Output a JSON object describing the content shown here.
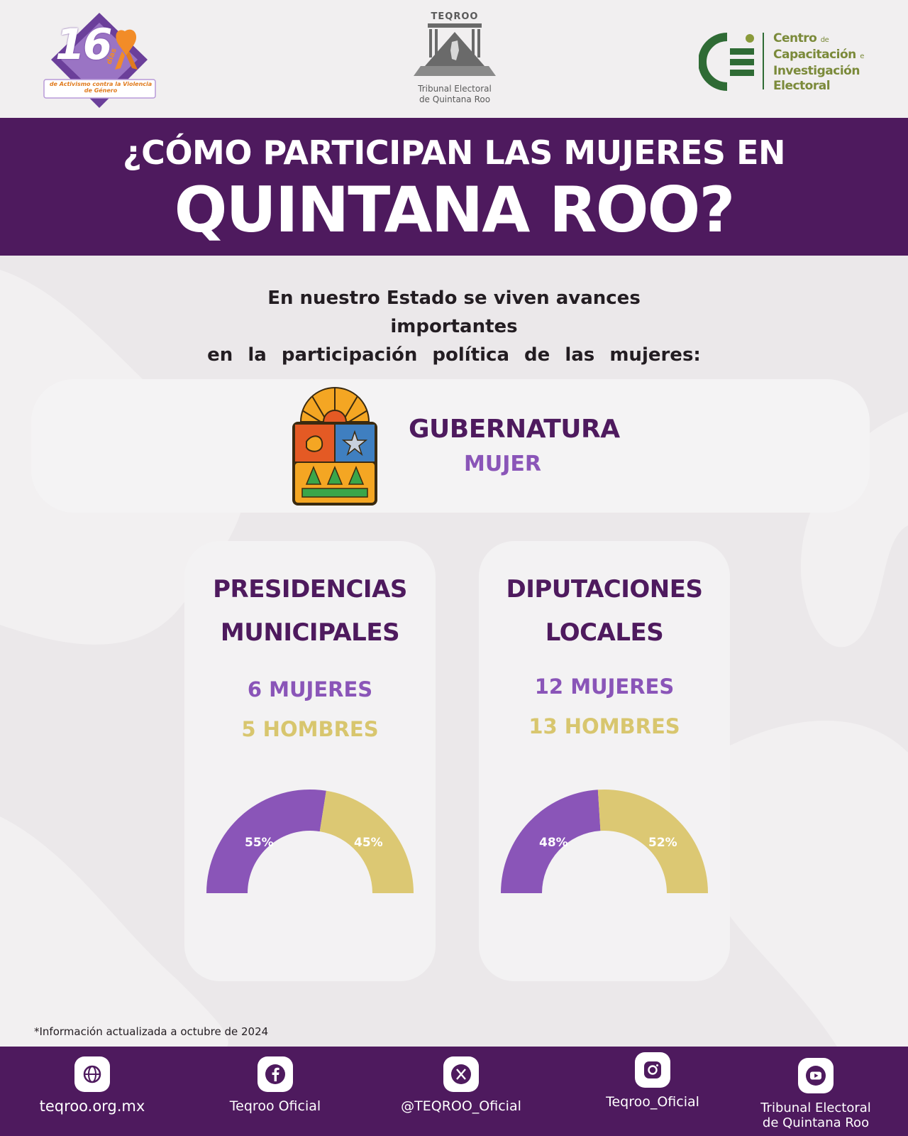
{
  "header": {
    "logo_16": {
      "number": "16",
      "dias": "días",
      "tagline": "de Activismo contra la Violencia de Género"
    },
    "logo_teqroo": {
      "acronym": "TEQROO",
      "name_line1": "Tribunal Electoral",
      "name_line2": "de Quintana Roo"
    },
    "logo_ccie": {
      "line1": "Centro",
      "line1_small": "de",
      "line2": "Capacitación",
      "line2_small": "e",
      "line3": "Investigación",
      "line4": "Electoral"
    }
  },
  "banner": {
    "line1": "¿CÓMO PARTICIPAN LAS MUJERES EN",
    "line2": "QUINTANA ROO?"
  },
  "intro": {
    "line1": "En nuestro Estado se viven avances importantes",
    "line2": "en la participación política de las mujeres:"
  },
  "gubernatura": {
    "title": "GUBERNATURA",
    "value": "MUJER"
  },
  "cards": [
    {
      "title_line1": "PRESIDENCIAS",
      "title_line2": "MUNICIPALES",
      "women": "6 MUJERES",
      "men": "5 HOMBRES",
      "women_pct_label": "55%",
      "men_pct_label": "45%"
    },
    {
      "title_line1": "DIPUTACIONES",
      "title_line2": "LOCALES",
      "women": "12 MUJERES",
      "men": "13 HOMBRES",
      "women_pct_label": "48%",
      "men_pct_label": "52%"
    }
  ],
  "chart_data": [
    {
      "type": "pie",
      "categories": [
        "MUJERES",
        "HOMBRES"
      ],
      "values": [
        55,
        45
      ],
      "colors": [
        "#8a55b8",
        "#dcc873"
      ]
    },
    {
      "type": "pie",
      "categories": [
        "MUJERES",
        "HOMBRES"
      ],
      "values": [
        48,
        52
      ],
      "colors": [
        "#8a55b8",
        "#dcc873"
      ]
    }
  ],
  "note": "*Información actualizada a octubre de 2024",
  "footer": {
    "items": [
      {
        "icon": "globe-icon",
        "label": "teqroo.org.mx"
      },
      {
        "icon": "facebook-icon",
        "label": "Teqroo Oficial"
      },
      {
        "icon": "x-icon",
        "label": "@TEQROO_Oficial"
      },
      {
        "icon": "instagram-icon",
        "label": "Teqroo_Oficial"
      },
      {
        "icon": "youtube-icon",
        "label_line1": "Tribunal Electoral",
        "label_line2": "de Quintana Roo"
      }
    ]
  },
  "colors": {
    "purple_dark": "#4e1a5e",
    "purple_light": "#8a55b8",
    "gold": "#dcc873",
    "background": "#ebe8ea"
  }
}
